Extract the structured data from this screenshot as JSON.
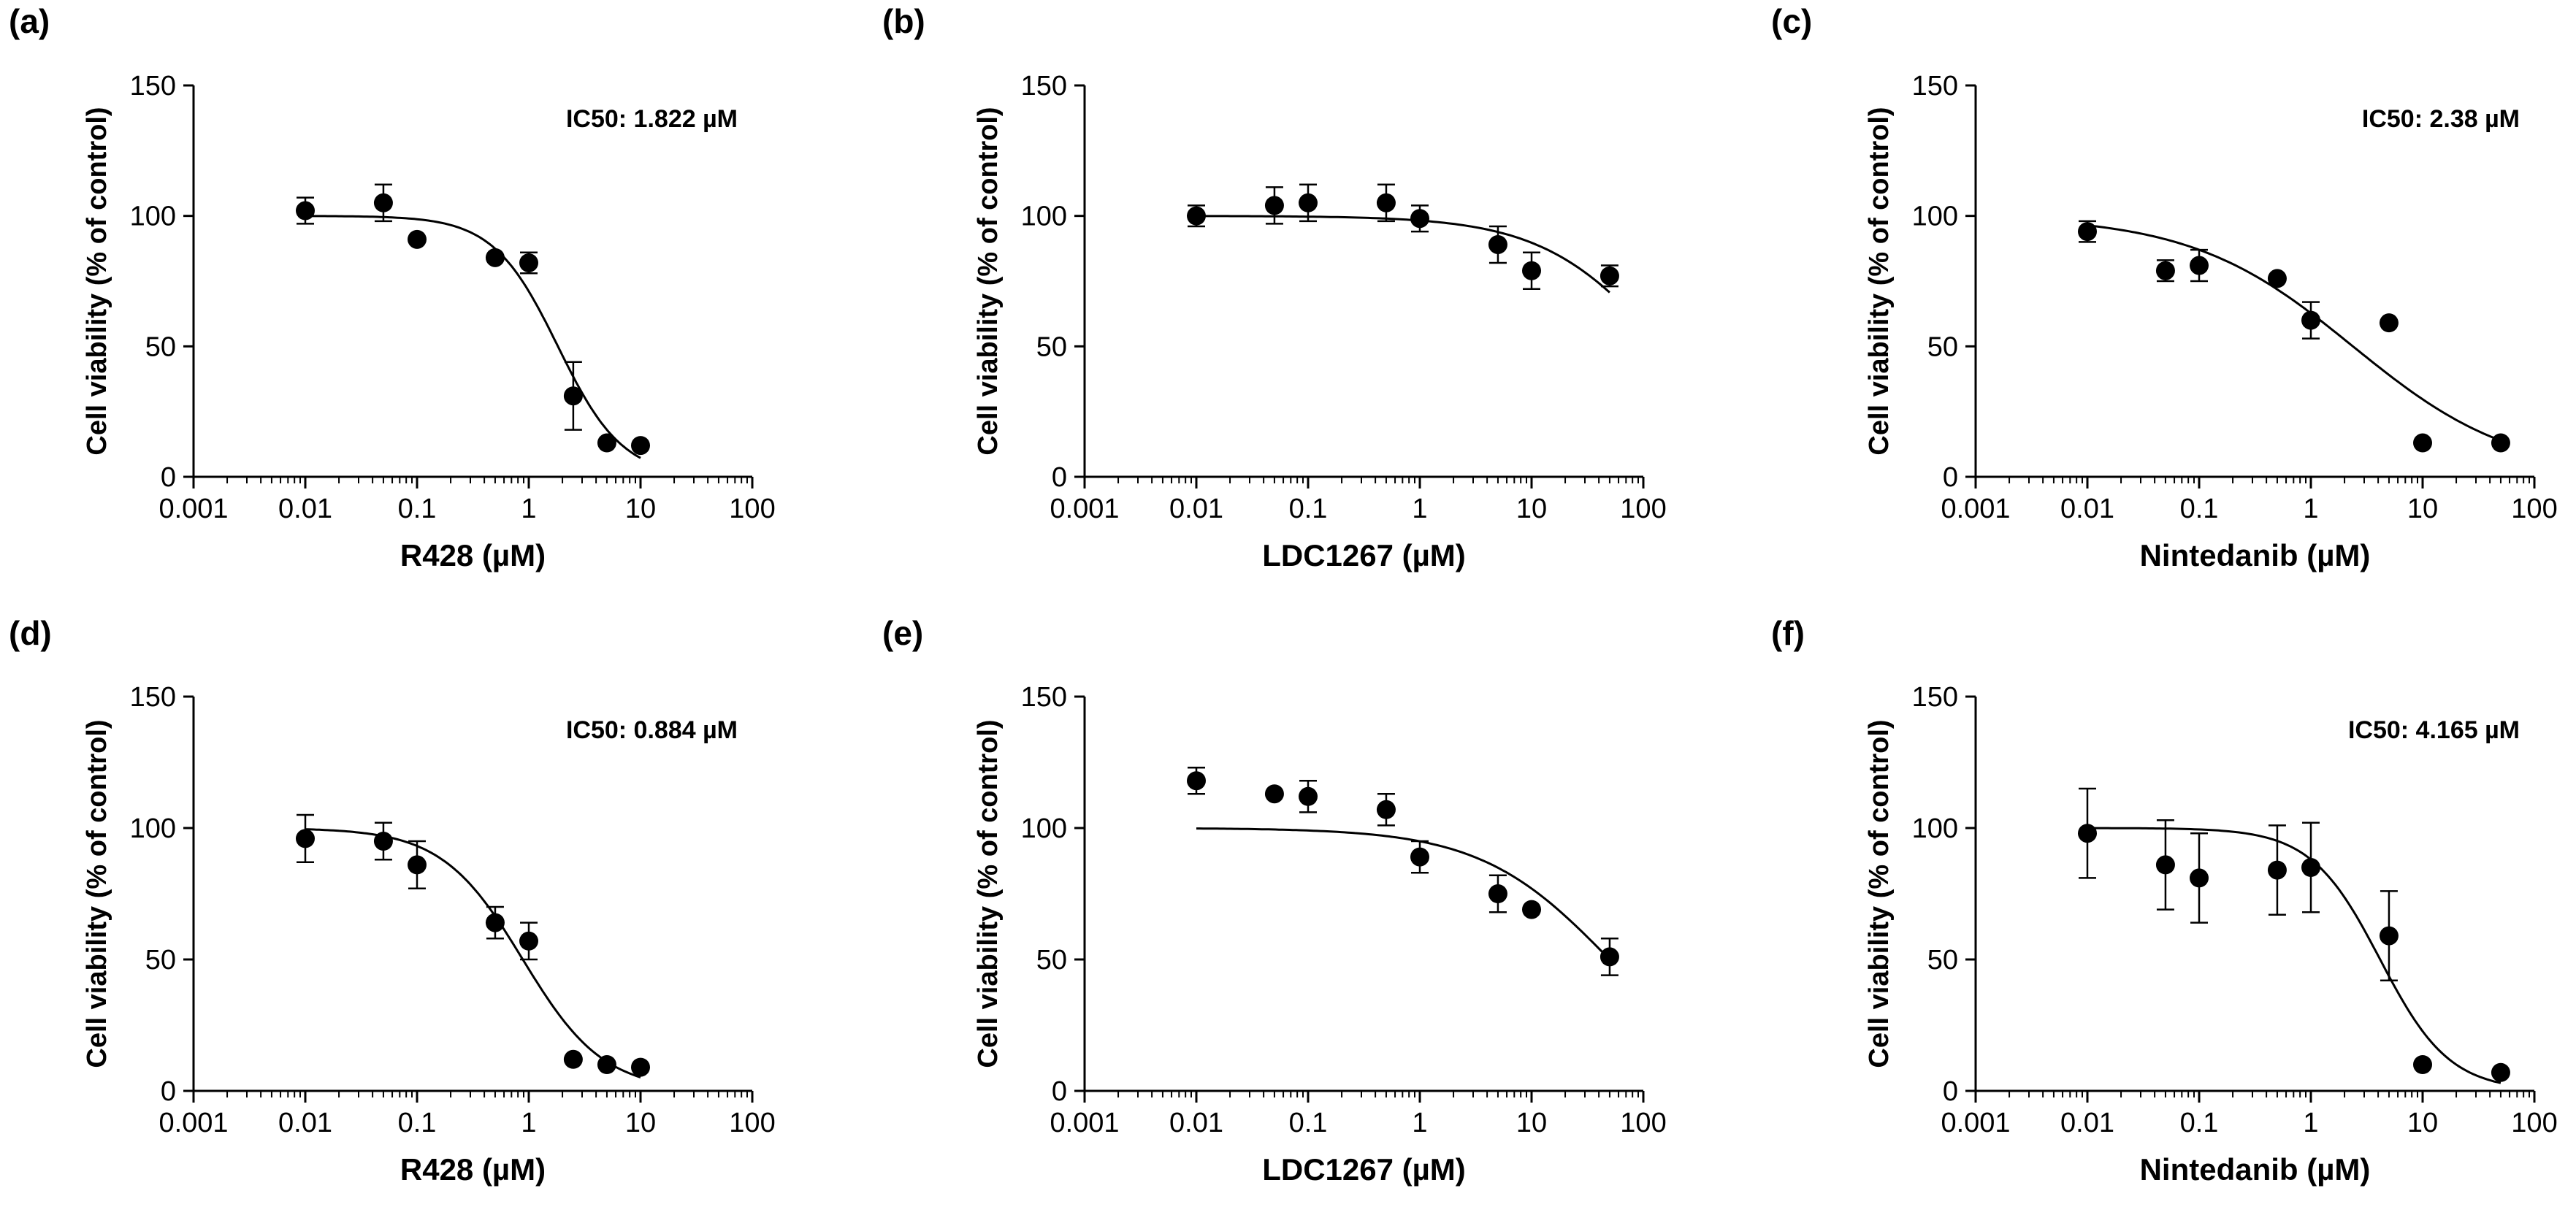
{
  "chart_data": [
    {
      "type": "scatter",
      "panel": "(a)",
      "xlabel": "R428 (µM)",
      "ylabel": "Cell viability (% of control)",
      "xscale": "log",
      "xlim": [
        0.001,
        100
      ],
      "ylim": [
        0,
        150
      ],
      "xticks": [
        "0.001",
        "0.01",
        "0.1",
        "1",
        "10",
        "100"
      ],
      "yticks": [
        "0",
        "50",
        "100",
        "150"
      ],
      "annotation": "IC50: 1.822 µM",
      "points": [
        {
          "x": 0.01,
          "y": 102,
          "err": 5
        },
        {
          "x": 0.05,
          "y": 105,
          "err": 7
        },
        {
          "x": 0.1,
          "y": 91,
          "err": 0
        },
        {
          "x": 0.5,
          "y": 84,
          "err": 0
        },
        {
          "x": 1,
          "y": 82,
          "err": 4
        },
        {
          "x": 2.5,
          "y": 31,
          "err": 13
        },
        {
          "x": 5,
          "y": 13,
          "err": 0
        },
        {
          "x": 10,
          "y": 12,
          "err": 0
        }
      ],
      "fit": {
        "top": 100,
        "bottom": 0,
        "ic50": 1.822,
        "hill": 1.5,
        "xmin": 0.01,
        "xmax": 10
      }
    },
    {
      "type": "scatter",
      "panel": "(b)",
      "xlabel": "LDC1267 (µM)",
      "ylabel": "Cell viability (% of control)",
      "xscale": "log",
      "xlim": [
        0.001,
        100
      ],
      "ylim": [
        0,
        150
      ],
      "xticks": [
        "0.001",
        "0.01",
        "0.1",
        "1",
        "10",
        "100"
      ],
      "yticks": [
        "0",
        "50",
        "100",
        "150"
      ],
      "annotation": "",
      "points": [
        {
          "x": 0.01,
          "y": 100,
          "err": 4
        },
        {
          "x": 0.05,
          "y": 104,
          "err": 7
        },
        {
          "x": 0.1,
          "y": 105,
          "err": 7
        },
        {
          "x": 0.5,
          "y": 105,
          "err": 7
        },
        {
          "x": 1,
          "y": 99,
          "err": 5
        },
        {
          "x": 5,
          "y": 89,
          "err": 7
        },
        {
          "x": 10,
          "y": 79,
          "err": 7
        },
        {
          "x": 50,
          "y": 77,
          "err": 4
        }
      ],
      "fit": {
        "top": 100,
        "bottom": 0,
        "ic50": 150,
        "hill": 0.8,
        "xmin": 0.01,
        "xmax": 50
      }
    },
    {
      "type": "scatter",
      "panel": "(c)",
      "xlabel": "Nintedanib (µM)",
      "ylabel": "Cell viability (% of control)",
      "xscale": "log",
      "xlim": [
        0.001,
        100
      ],
      "ylim": [
        0,
        150
      ],
      "xticks": [
        "0.001",
        "0.01",
        "0.1",
        "1",
        "10",
        "100"
      ],
      "yticks": [
        "0",
        "50",
        "100",
        "150"
      ],
      "annotation": "IC50: 2.38 µM",
      "points": [
        {
          "x": 0.01,
          "y": 94,
          "err": 4
        },
        {
          "x": 0.05,
          "y": 79,
          "err": 4
        },
        {
          "x": 0.1,
          "y": 81,
          "err": 6
        },
        {
          "x": 0.5,
          "y": 76,
          "err": 0
        },
        {
          "x": 1,
          "y": 60,
          "err": 7
        },
        {
          "x": 5,
          "y": 59,
          "err": 0
        },
        {
          "x": 10,
          "y": 13,
          "err": 0
        },
        {
          "x": 50,
          "y": 13,
          "err": 0
        }
      ],
      "fit": {
        "top": 100,
        "bottom": 0,
        "ic50": 2.38,
        "hill": 0.6,
        "xmin": 0.01,
        "xmax": 50
      }
    },
    {
      "type": "scatter",
      "panel": "(d)",
      "xlabel": "R428 (µM)",
      "ylabel": "Cell viability (% of control)",
      "xscale": "log",
      "xlim": [
        0.001,
        100
      ],
      "ylim": [
        0,
        150
      ],
      "xticks": [
        "0.001",
        "0.01",
        "0.1",
        "1",
        "10",
        "100"
      ],
      "yticks": [
        "0",
        "50",
        "100",
        "150"
      ],
      "annotation": "IC50: 0.884 µM",
      "points": [
        {
          "x": 0.01,
          "y": 96,
          "err": 9
        },
        {
          "x": 0.05,
          "y": 95,
          "err": 7
        },
        {
          "x": 0.1,
          "y": 86,
          "err": 9
        },
        {
          "x": 0.5,
          "y": 64,
          "err": 6
        },
        {
          "x": 1,
          "y": 57,
          "err": 7
        },
        {
          "x": 2.5,
          "y": 12,
          "err": 0
        },
        {
          "x": 5,
          "y": 10,
          "err": 0
        },
        {
          "x": 10,
          "y": 9,
          "err": 0
        }
      ],
      "fit": {
        "top": 100,
        "bottom": 0,
        "ic50": 0.884,
        "hill": 1.2,
        "xmin": 0.01,
        "xmax": 10
      }
    },
    {
      "type": "scatter",
      "panel": "(e)",
      "xlabel": "LDC1267 (µM)",
      "ylabel": "Cell viability (% of control)",
      "xscale": "log",
      "xlim": [
        0.001,
        100
      ],
      "ylim": [
        0,
        150
      ],
      "xticks": [
        "0.001",
        "0.01",
        "0.1",
        "1",
        "10",
        "100"
      ],
      "yticks": [
        "0",
        "50",
        "100",
        "150"
      ],
      "annotation": "",
      "points": [
        {
          "x": 0.01,
          "y": 118,
          "err": 5
        },
        {
          "x": 0.05,
          "y": 113,
          "err": 0
        },
        {
          "x": 0.1,
          "y": 112,
          "err": 6
        },
        {
          "x": 0.5,
          "y": 107,
          "err": 6
        },
        {
          "x": 1,
          "y": 89,
          "err": 6
        },
        {
          "x": 5,
          "y": 75,
          "err": 7
        },
        {
          "x": 10,
          "y": 69,
          "err": 0
        },
        {
          "x": 50,
          "y": 51,
          "err": 7
        }
      ],
      "fit": {
        "top": 100,
        "bottom": 0,
        "ic50": 50,
        "hill": 0.75,
        "xmin": 0.01,
        "xmax": 50
      }
    },
    {
      "type": "scatter",
      "panel": "(f)",
      "xlabel": "Nintedanib (µM)",
      "ylabel": "Cell viability (% of control)",
      "xscale": "log",
      "xlim": [
        0.001,
        100
      ],
      "ylim": [
        0,
        150
      ],
      "xticks": [
        "0.001",
        "0.01",
        "0.1",
        "1",
        "10",
        "100"
      ],
      "yticks": [
        "0",
        "50",
        "100",
        "150"
      ],
      "annotation": "IC50: 4.165 µM",
      "points": [
        {
          "x": 0.01,
          "y": 98,
          "err": 17
        },
        {
          "x": 0.05,
          "y": 86,
          "err": 17
        },
        {
          "x": 0.1,
          "y": 81,
          "err": 17
        },
        {
          "x": 0.5,
          "y": 84,
          "err": 17
        },
        {
          "x": 1,
          "y": 85,
          "err": 17
        },
        {
          "x": 5,
          "y": 59,
          "err": 17
        },
        {
          "x": 10,
          "y": 10,
          "err": 0
        },
        {
          "x": 50,
          "y": 7,
          "err": 0
        }
      ],
      "fit": {
        "top": 100,
        "bottom": 0,
        "ic50": 4.165,
        "hill": 1.4,
        "xmin": 0.01,
        "xmax": 50
      }
    }
  ]
}
